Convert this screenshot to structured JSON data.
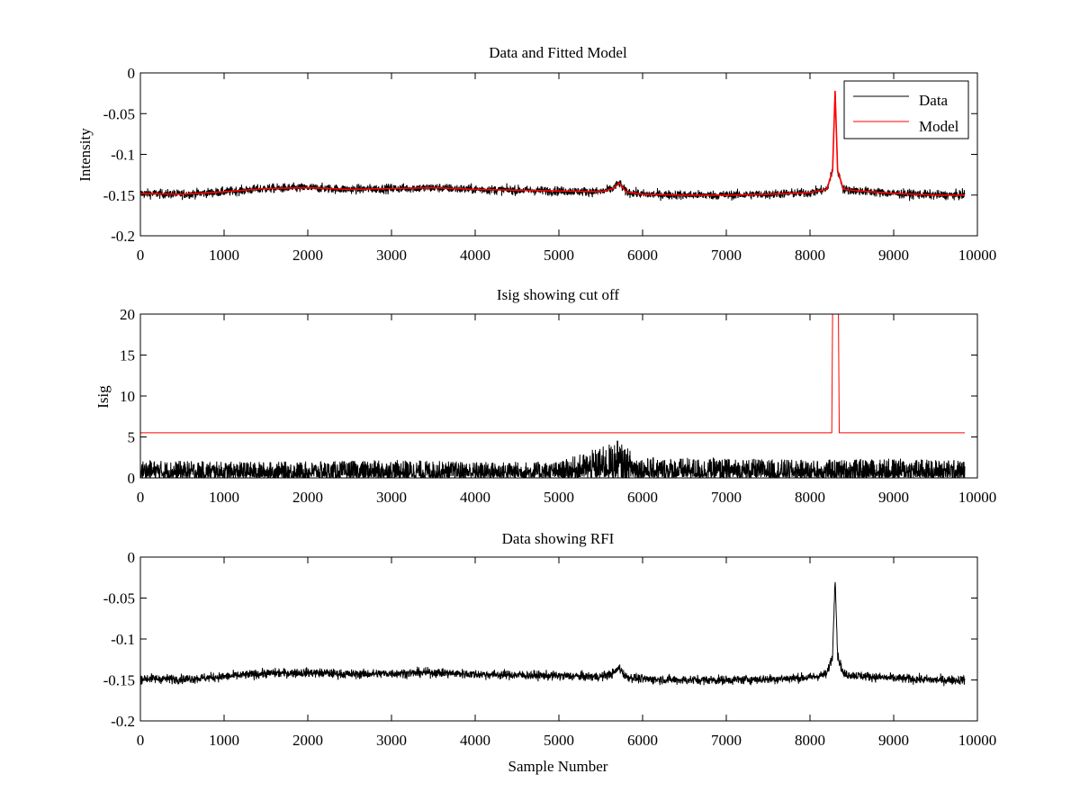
{
  "chart_data": [
    {
      "type": "line",
      "title": "Data and Fitted Model",
      "xlabel": "",
      "ylabel": "Intensity",
      "xlim": [
        0,
        10000
      ],
      "ylim": [
        -0.2,
        0
      ],
      "xticks": [
        "0",
        "1000",
        "2000",
        "3000",
        "4000",
        "5000",
        "6000",
        "7000",
        "8000",
        "9000",
        "10000"
      ],
      "yticks": [
        "-0.2",
        "-0.15",
        "-0.1",
        "-0.05",
        "0"
      ],
      "legend": {
        "position": "top-right",
        "entries": [
          "Data",
          "Model"
        ]
      },
      "series": [
        {
          "name": "Data",
          "color": "#000000",
          "style": "noisy",
          "noise_amplitude": 0.004,
          "x": [
            0,
            500,
            1000,
            1500,
            2000,
            2500,
            3000,
            3500,
            4000,
            4500,
            5000,
            5500,
            5650,
            5720,
            5800,
            6000,
            6500,
            7000,
            7500,
            8000,
            8200,
            8270,
            8300,
            8330,
            8400,
            8600,
            9000,
            9500,
            9850
          ],
          "y": [
            -0.148,
            -0.149,
            -0.146,
            -0.142,
            -0.141,
            -0.143,
            -0.142,
            -0.141,
            -0.143,
            -0.144,
            -0.145,
            -0.146,
            -0.142,
            -0.135,
            -0.146,
            -0.149,
            -0.15,
            -0.15,
            -0.149,
            -0.147,
            -0.143,
            -0.12,
            -0.022,
            -0.12,
            -0.143,
            -0.145,
            -0.148,
            -0.15,
            -0.15
          ]
        },
        {
          "name": "Model",
          "color": "#ff0000",
          "style": "smooth",
          "x": [
            0,
            500,
            1000,
            1500,
            2000,
            2500,
            3000,
            3500,
            4000,
            4500,
            5000,
            5500,
            5650,
            5720,
            5800,
            6000,
            6500,
            7000,
            7500,
            8000,
            8200,
            8270,
            8300,
            8330,
            8400,
            8600,
            9000,
            9500,
            9850
          ],
          "y": [
            -0.148,
            -0.149,
            -0.146,
            -0.142,
            -0.141,
            -0.143,
            -0.142,
            -0.141,
            -0.143,
            -0.144,
            -0.145,
            -0.146,
            -0.142,
            -0.135,
            -0.146,
            -0.149,
            -0.15,
            -0.15,
            -0.149,
            -0.147,
            -0.143,
            -0.12,
            -0.022,
            -0.12,
            -0.143,
            -0.145,
            -0.148,
            -0.15,
            -0.15
          ]
        }
      ]
    },
    {
      "type": "line",
      "title": "Isig showing cut off",
      "xlabel": "",
      "ylabel": "Isig",
      "xlim": [
        0,
        10000
      ],
      "ylim": [
        0,
        20
      ],
      "xticks": [
        "0",
        "1000",
        "2000",
        "3000",
        "4000",
        "5000",
        "6000",
        "7000",
        "8000",
        "9000",
        "10000"
      ],
      "yticks": [
        "0",
        "5",
        "10",
        "15",
        "20"
      ],
      "series": [
        {
          "color": "#000000",
          "style": "spiky",
          "x": [
            0,
            1000,
            2000,
            3000,
            4000,
            5000,
            5700,
            6000,
            7000,
            8000,
            9000,
            9850
          ],
          "y": [
            2.2,
            2.0,
            2.0,
            2.2,
            2.0,
            2.0,
            4.5,
            2.5,
            2.4,
            2.2,
            2.4,
            2.2
          ]
        },
        {
          "color": "#ff0000",
          "style": "step",
          "x": [
            0,
            8260,
            8270,
            8340,
            8350,
            9850
          ],
          "y": [
            5.5,
            5.5,
            20,
            20,
            5.5,
            5.5
          ]
        }
      ]
    },
    {
      "type": "line",
      "title": "Data showing RFI",
      "xlabel": "Sample Number",
      "ylabel": "",
      "xlim": [
        0,
        10000
      ],
      "ylim": [
        -0.2,
        0
      ],
      "xticks": [
        "0",
        "1000",
        "2000",
        "3000",
        "4000",
        "5000",
        "6000",
        "7000",
        "8000",
        "9000",
        "10000"
      ],
      "yticks": [
        "-0.2",
        "-0.15",
        "-0.1",
        "-0.05",
        "0"
      ],
      "series": [
        {
          "color": "#000000",
          "style": "noisy",
          "noise_amplitude": 0.004,
          "x": [
            0,
            500,
            1000,
            1500,
            2000,
            2500,
            3000,
            3500,
            4000,
            4500,
            5000,
            5500,
            5650,
            5720,
            5800,
            6000,
            6500,
            7000,
            7500,
            8000,
            8200,
            8270,
            8300,
            8330,
            8400,
            8600,
            9000,
            9500,
            9850
          ],
          "y": [
            -0.148,
            -0.149,
            -0.146,
            -0.142,
            -0.141,
            -0.143,
            -0.142,
            -0.141,
            -0.143,
            -0.144,
            -0.145,
            -0.146,
            -0.142,
            -0.135,
            -0.146,
            -0.149,
            -0.15,
            -0.15,
            -0.149,
            -0.147,
            -0.143,
            -0.12,
            -0.022,
            -0.12,
            -0.143,
            -0.145,
            -0.148,
            -0.15,
            -0.15
          ]
        }
      ]
    }
  ]
}
